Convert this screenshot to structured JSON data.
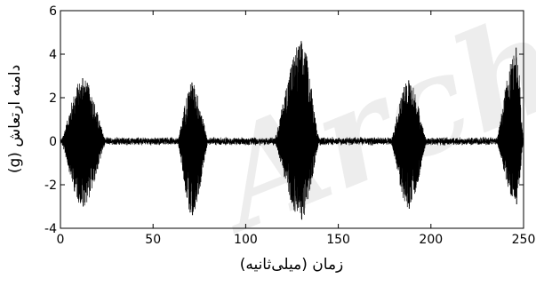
{
  "chart_data": {
    "type": "line",
    "title": "",
    "xlabel": "زمان (میلی‌ثانیه)",
    "ylabel": "دامنه ارتعاش (g)",
    "xlim": [
      0,
      250
    ],
    "ylim": [
      -4,
      6
    ],
    "xticks": [
      0,
      50,
      100,
      150,
      200,
      250
    ],
    "yticks": [
      -4,
      -2,
      0,
      2,
      4,
      6
    ],
    "grid": false,
    "line_color": "#000000",
    "watermark": "Arch",
    "bursts": [
      {
        "start": 0,
        "end": 25,
        "peak_time": 12,
        "max": 2.9,
        "min": -3.0
      },
      {
        "start": 63,
        "end": 80,
        "peak_time": 71,
        "max": 2.7,
        "min": -3.4
      },
      {
        "start": 115,
        "end": 140,
        "peak_time": 130,
        "max": 4.6,
        "min": -3.6
      },
      {
        "start": 178,
        "end": 198,
        "peak_time": 188,
        "max": 2.8,
        "min": -3.1
      },
      {
        "start": 235,
        "end": 250,
        "peak_time": 246,
        "max": 4.3,
        "min": -2.9
      }
    ],
    "baseline_noise_amplitude": 0.2
  }
}
